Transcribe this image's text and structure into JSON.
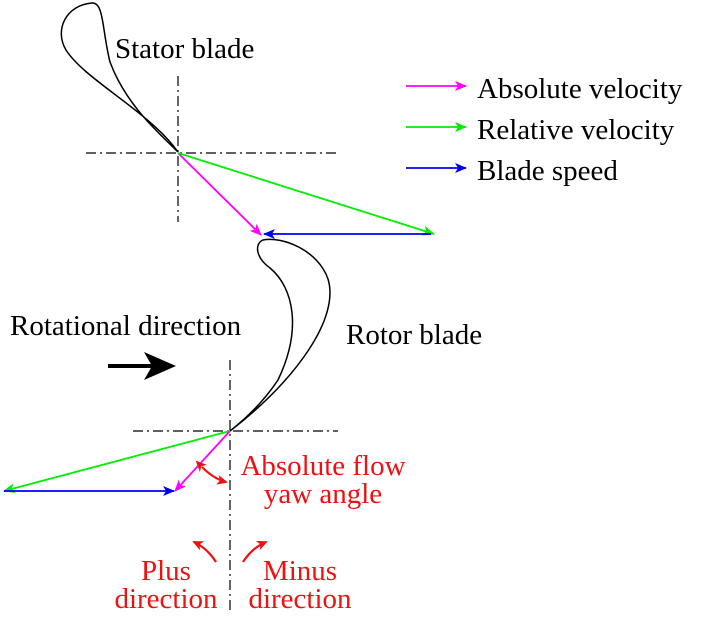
{
  "labels": {
    "stator_blade": "Stator blade",
    "rotor_blade": "Rotor blade",
    "rotational_direction": "Rotational direction",
    "yaw_angle_line1": "Absolute flow",
    "yaw_angle_line2": "yaw angle",
    "plus_line1": "Plus",
    "plus_line2": "direction",
    "minus_line1": "Minus",
    "minus_line2": "direction"
  },
  "legend": [
    {
      "label": "Absolute velocity",
      "color": "#ff00ff"
    },
    {
      "label": "Relative velocity",
      "color": "#00ee00"
    },
    {
      "label": "Blade speed",
      "color": "#0000ee"
    }
  ],
  "colors": {
    "absolute_velocity": "#ff00ff",
    "relative_velocity": "#00ee00",
    "blade_speed": "#0000ee",
    "annotation": "#ee1111",
    "outline": "#000000"
  }
}
